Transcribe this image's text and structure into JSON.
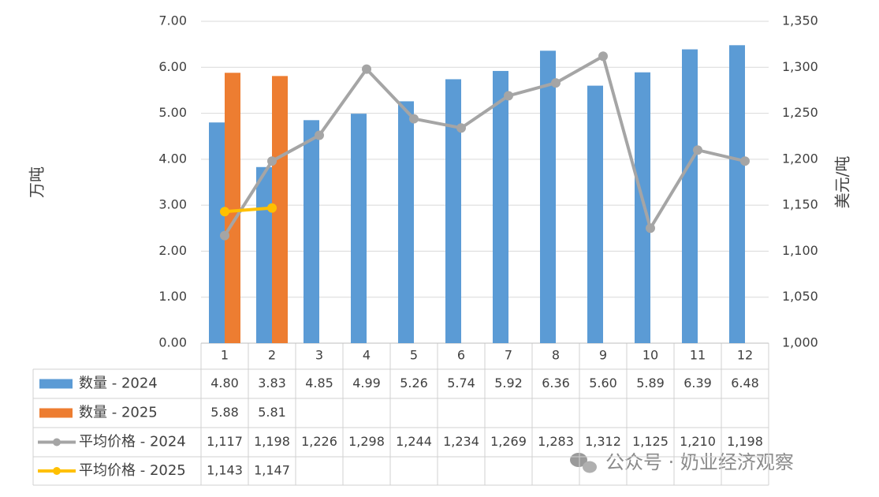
{
  "chart_data": {
    "type": "bar",
    "categories": [
      "1",
      "2",
      "3",
      "4",
      "5",
      "6",
      "7",
      "8",
      "9",
      "10",
      "11",
      "12"
    ],
    "y_label": "万吨",
    "y2_label": "美元/吨",
    "ylim": [
      0,
      7
    ],
    "yticks": [
      {
        "value": 0,
        "label": "0.00"
      },
      {
        "value": 1,
        "label": "1.00"
      },
      {
        "value": 2,
        "label": "2.00"
      },
      {
        "value": 3,
        "label": "3.00"
      },
      {
        "value": 4,
        "label": "4.00"
      },
      {
        "value": 5,
        "label": "5.00"
      },
      {
        "value": 6,
        "label": "6.00"
      },
      {
        "value": 7,
        "label": "7.00"
      }
    ],
    "y2lim": [
      1000,
      1350
    ],
    "y2ticks": [
      {
        "value": 1000,
        "label": "1,000"
      },
      {
        "value": 1050,
        "label": "1,050"
      },
      {
        "value": 1100,
        "label": "1,100"
      },
      {
        "value": 1150,
        "label": "1,150"
      },
      {
        "value": 1200,
        "label": "1,200"
      },
      {
        "value": 1250,
        "label": "1,250"
      },
      {
        "value": 1300,
        "label": "1,300"
      },
      {
        "value": 1350,
        "label": "1,350"
      }
    ],
    "grid": true,
    "series": [
      {
        "name": "数量 - 2024",
        "type": "bar",
        "color": "#5b9bd5",
        "values": [
          4.8,
          3.83,
          4.85,
          4.99,
          5.26,
          5.74,
          5.92,
          6.36,
          5.6,
          5.89,
          6.39,
          6.48
        ],
        "value_labels": [
          "4.80",
          "3.83",
          "4.85",
          "4.99",
          "5.26",
          "5.74",
          "5.92",
          "6.36",
          "5.60",
          "5.89",
          "6.39",
          "6.48"
        ]
      },
      {
        "name": "数量 - 2025",
        "type": "bar",
        "color": "#ed7d31",
        "values": [
          5.88,
          5.81,
          null,
          null,
          null,
          null,
          null,
          null,
          null,
          null,
          null,
          null
        ],
        "value_labels": [
          "5.88",
          "5.81",
          null,
          null,
          null,
          null,
          null,
          null,
          null,
          null,
          null,
          null
        ]
      },
      {
        "name": "平均价格 - 2024",
        "type": "line",
        "axis": "y2",
        "color": "#a5a5a5",
        "values": [
          1117,
          1198,
          1226,
          1298,
          1244,
          1234,
          1269,
          1283,
          1312,
          1125,
          1210,
          1198
        ],
        "value_labels": [
          "1,117",
          "1,198",
          "1,226",
          "1,298",
          "1,244",
          "1,234",
          "1,269",
          "1,283",
          "1,312",
          "1,125",
          "1,210",
          "1,198"
        ]
      },
      {
        "name": "平均价格 - 2025",
        "type": "line",
        "axis": "y2",
        "color": "#ffc000",
        "values": [
          1143,
          1147,
          null,
          null,
          null,
          null,
          null,
          null,
          null,
          null,
          null,
          null
        ],
        "value_labels": [
          "1,143",
          "1,147",
          null,
          null,
          null,
          null,
          null,
          null,
          null,
          null,
          null,
          null
        ]
      }
    ],
    "annotation": "公众号 · 奶业经济观察"
  }
}
